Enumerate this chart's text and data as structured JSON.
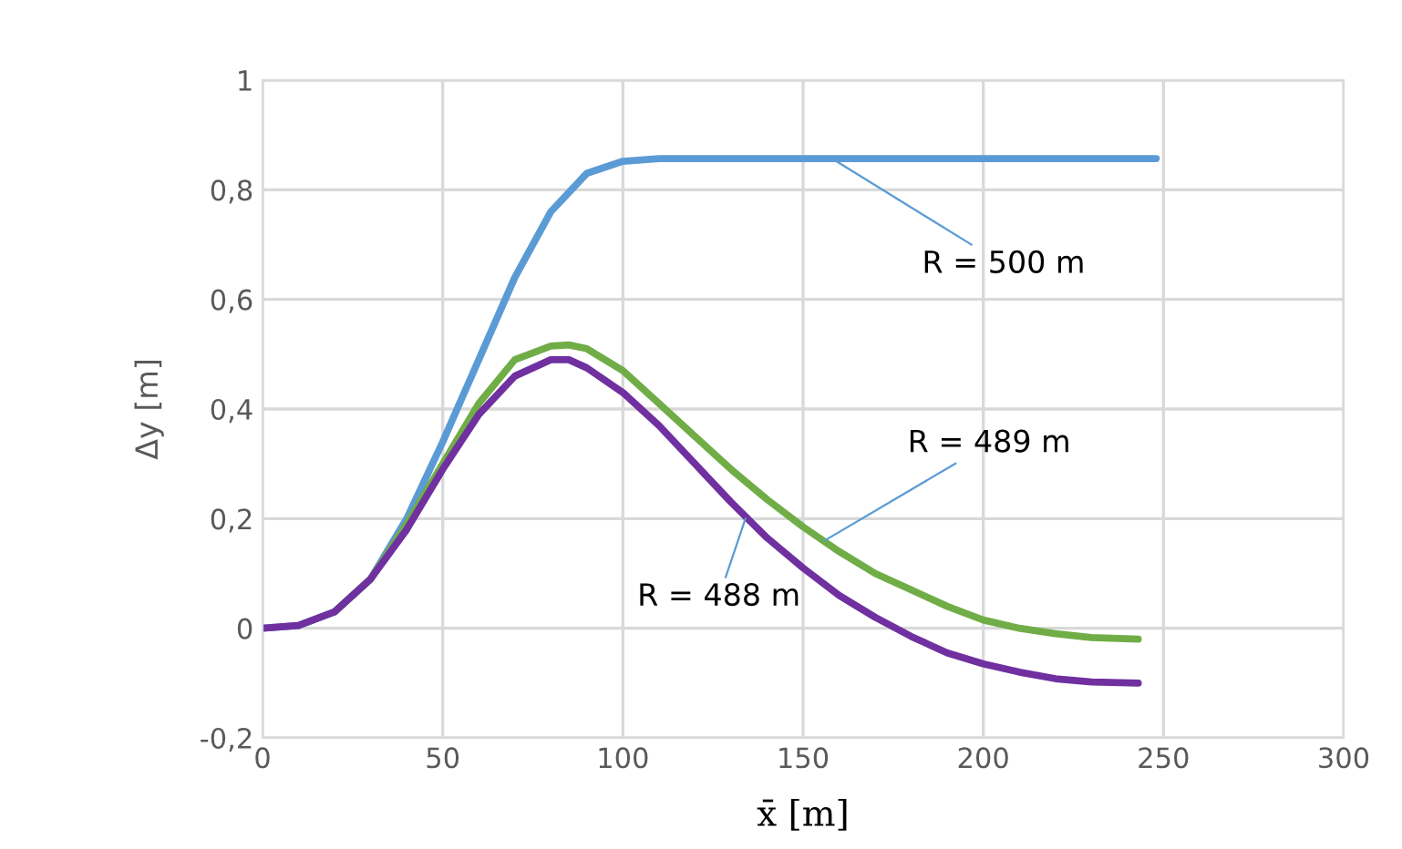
{
  "chart_data": {
    "type": "line",
    "xlabel": "x̄ [m]",
    "ylabel": "Δy [m]",
    "xlim": [
      0,
      300
    ],
    "xticks": [
      0,
      50,
      100,
      150,
      200,
      250,
      300
    ],
    "ylim": [
      -0.2,
      1
    ],
    "yticks": [
      {
        "value": -0.2,
        "label": "-0,2"
      },
      0,
      {
        "value": 0.2,
        "label": "0,2"
      },
      {
        "value": 0.4,
        "label": "0,4"
      },
      {
        "value": 0.6,
        "label": "0,6"
      },
      {
        "value": 0.8,
        "label": "0,8"
      },
      1
    ],
    "grid": true,
    "legend": false,
    "marker": "none",
    "line_style": "solid",
    "series": [
      {
        "color": "#5b9bd5",
        "x": [
          0,
          10,
          20,
          30,
          40,
          50,
          60,
          70,
          80,
          90,
          100,
          110,
          120,
          150,
          200,
          248
        ],
        "values": [
          0,
          0.005,
          0.03,
          0.09,
          0.2,
          0.34,
          0.49,
          0.64,
          0.76,
          0.83,
          0.852,
          0.857,
          0.857,
          0.857,
          0.857,
          0.857
        ]
      },
      {
        "color": "#70ad47",
        "x": [
          20,
          30,
          40,
          50,
          60,
          70,
          80,
          85,
          90,
          100,
          110,
          120,
          130,
          140,
          150,
          160,
          170,
          180,
          190,
          200,
          210,
          220,
          230,
          243
        ],
        "values": [
          0.03,
          0.09,
          0.19,
          0.3,
          0.41,
          0.49,
          0.515,
          0.517,
          0.51,
          0.47,
          0.41,
          0.35,
          0.29,
          0.235,
          0.185,
          0.14,
          0.1,
          0.07,
          0.04,
          0.015,
          0,
          -0.01,
          -0.017,
          -0.02
        ]
      },
      {
        "color": "#7030a0",
        "x": [
          0,
          10,
          20,
          30,
          40,
          50,
          60,
          70,
          80,
          85,
          90,
          100,
          110,
          120,
          130,
          140,
          150,
          160,
          170,
          180,
          190,
          200,
          210,
          220,
          230,
          243
        ],
        "values": [
          0,
          0.005,
          0.03,
          0.09,
          0.18,
          0.29,
          0.39,
          0.46,
          0.49,
          0.49,
          0.475,
          0.43,
          0.37,
          0.3,
          0.23,
          0.165,
          0.11,
          0.06,
          0.02,
          -0.015,
          -0.045,
          -0.065,
          -0.08,
          -0.092,
          -0.098,
          -0.1
        ]
      }
    ],
    "annotations": [
      {
        "text": "R = 500 m",
        "x": 158,
        "y": 0.857
      },
      {
        "text": "R = 489 m",
        "x": 156,
        "y": 0.16
      },
      {
        "text": "R = 488 m",
        "x": 134,
        "y": 0.2
      }
    ]
  }
}
